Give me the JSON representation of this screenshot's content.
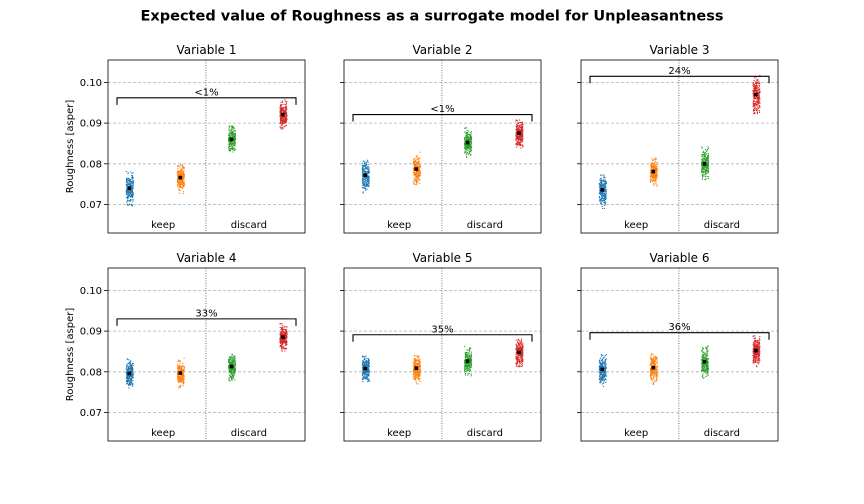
{
  "chart_data": {
    "type": "scatter",
    "title": "Expected value of Roughness as a surrogate model for Unpleasantness",
    "ylabel": "Roughness [asper]",
    "ylim": [
      0.063,
      0.1055
    ],
    "yticks": [
      "0.07",
      "0.08",
      "0.09",
      "0.10"
    ],
    "ytick_values": [
      0.07,
      0.08,
      0.09,
      0.1
    ],
    "grid": true,
    "group_labels": [
      "keep",
      "discard"
    ],
    "colors": [
      "#1f77b4",
      "#ff7f0e",
      "#2ca02c",
      "#d62728"
    ],
    "panels": [
      {
        "title": "Variable 1",
        "pct_label": "<1%",
        "bracket_y": 0.0962,
        "means": [
          0.074,
          0.0766,
          0.086,
          0.0921
        ],
        "spread": [
          [
            0.0695,
            0.0785
          ],
          [
            0.0725,
            0.08
          ],
          [
            0.082,
            0.0895
          ],
          [
            0.0885,
            0.096
          ]
        ]
      },
      {
        "title": "Variable 2",
        "pct_label": "<1%",
        "bracket_y": 0.0921,
        "means": [
          0.0772,
          0.0787,
          0.0852,
          0.0875
        ],
        "spread": [
          [
            0.0728,
            0.081
          ],
          [
            0.075,
            0.083
          ],
          [
            0.081,
            0.089
          ],
          [
            0.083,
            0.091
          ]
        ]
      },
      {
        "title": "Variable 3",
        "pct_label": "24%",
        "bracket_y": 0.1015,
        "means": [
          0.0736,
          0.0781,
          0.08,
          0.097
        ],
        "spread": [
          [
            0.069,
            0.078
          ],
          [
            0.0745,
            0.082
          ],
          [
            0.076,
            0.0845
          ],
          [
            0.092,
            0.102
          ]
        ]
      },
      {
        "title": "Variable 4",
        "pct_label": "33%",
        "bracket_y": 0.093,
        "means": [
          0.0796,
          0.0797,
          0.0813,
          0.0885
        ],
        "spread": [
          [
            0.076,
            0.0835
          ],
          [
            0.076,
            0.0835
          ],
          [
            0.0775,
            0.085
          ],
          [
            0.0845,
            0.092
          ]
        ]
      },
      {
        "title": "Variable 5",
        "pct_label": "35%",
        "bracket_y": 0.0891,
        "means": [
          0.0808,
          0.0809,
          0.0826,
          0.0848
        ],
        "spread": [
          [
            0.077,
            0.0845
          ],
          [
            0.077,
            0.0845
          ],
          [
            0.079,
            0.0865
          ],
          [
            0.081,
            0.0885
          ]
        ]
      },
      {
        "title": "Variable 6",
        "pct_label": "36%",
        "bracket_y": 0.0896,
        "means": [
          0.0806,
          0.081,
          0.0825,
          0.0852
        ],
        "spread": [
          [
            0.0765,
            0.0845
          ],
          [
            0.077,
            0.085
          ],
          [
            0.0785,
            0.0865
          ],
          [
            0.081,
            0.089
          ]
        ]
      }
    ]
  }
}
